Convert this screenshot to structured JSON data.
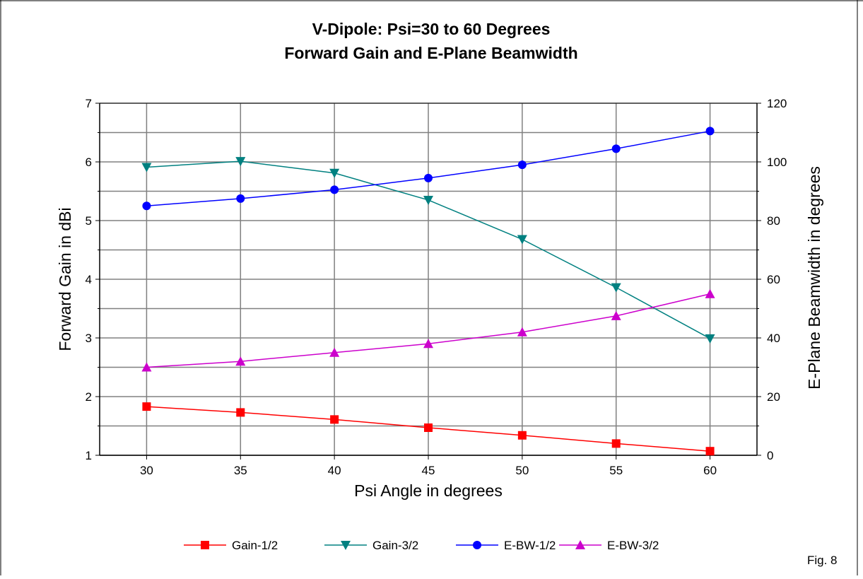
{
  "chart_data": {
    "type": "line",
    "title": "V-Dipole: Psi=30 to 60 Degrees",
    "subtitle": "Forward Gain and E-Plane Beamwidth",
    "xlabel": "Psi Angle in degrees",
    "ylabel": "Forward Gain in dBi",
    "y2label": "E-Plane Beamwidth in degrees",
    "x": [
      30,
      35,
      40,
      45,
      50,
      55,
      60
    ],
    "xlim": [
      27.5,
      62.5
    ],
    "ylim": [
      1,
      7
    ],
    "y2lim": [
      0,
      120
    ],
    "xticks": [
      "30",
      "35",
      "40",
      "45",
      "50",
      "55",
      "60"
    ],
    "yticks": [
      "1",
      "2",
      "3",
      "4",
      "5",
      "6",
      "7"
    ],
    "y2ticks": [
      "0",
      "20",
      "40",
      "60",
      "80",
      "100",
      "120"
    ],
    "grid": true,
    "legend_position": "bottom",
    "series": [
      {
        "name": "Gain-1/2",
        "axis": "left",
        "color": "#ff0000",
        "marker": "square",
        "values": [
          1.83,
          1.73,
          1.61,
          1.47,
          1.34,
          1.2,
          1.07
        ]
      },
      {
        "name": "Gain-3/2",
        "axis": "left",
        "color": "#008080",
        "marker": "triangle-down",
        "values": [
          5.91,
          6.01,
          5.81,
          5.35,
          4.68,
          3.86,
          2.99
        ]
      },
      {
        "name": "E-BW-1/2",
        "axis": "right",
        "color": "#0000ff",
        "marker": "circle",
        "values": [
          85,
          87.5,
          90.5,
          94.5,
          99,
          104.5,
          110.5
        ]
      },
      {
        "name": "E-BW-3/2",
        "axis": "right",
        "color": "#cc00cc",
        "marker": "triangle-up",
        "values": [
          30,
          32,
          35,
          38,
          42,
          47.5,
          55
        ]
      }
    ]
  },
  "footnote": "Fig. 8"
}
